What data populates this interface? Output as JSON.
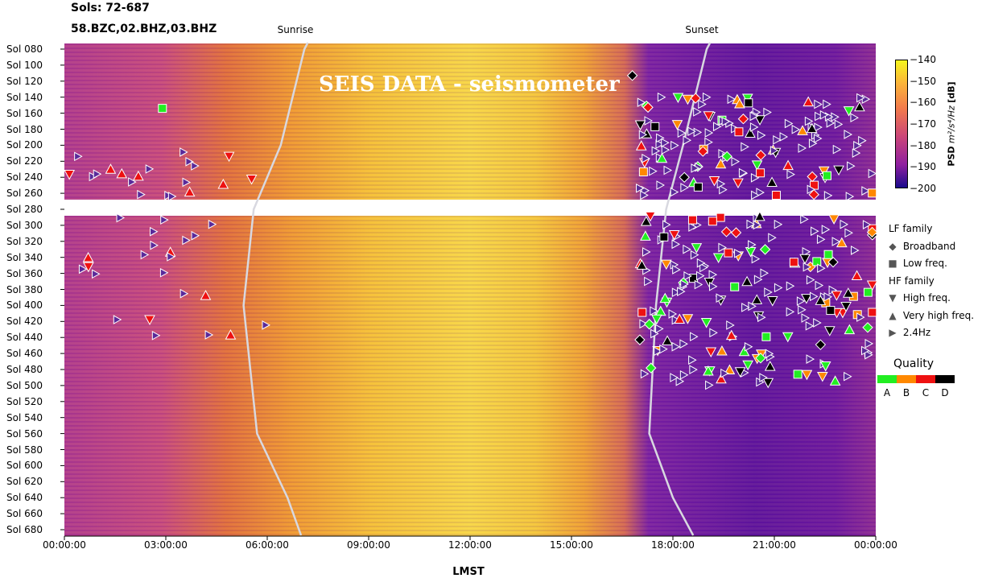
{
  "header": {
    "sols": "Sols: 72-687",
    "channels": "58.BZC,02.BHZ,03.BHZ"
  },
  "markers": {
    "sunrise": "Sunrise",
    "sunset": "Sunset"
  },
  "watermark": "SEIS DATA - seismometer",
  "colorbar": {
    "title": "PSD m²/s⁴/Hz [dB]",
    "ticks": [
      "−140",
      "−150",
      "−160",
      "−170",
      "−180",
      "−190",
      "−200"
    ],
    "range": [
      -200,
      -140
    ]
  },
  "legend": {
    "lf_title": "LF family",
    "broadband": "Broadband",
    "low_freq": "Low freq.",
    "hf_title": "HF family",
    "high_freq": "High freq.",
    "very_high_freq": "Very high freq.",
    "hz24": "2.4Hz"
  },
  "quality": {
    "title": "Quality",
    "labels": [
      "A",
      "B",
      "C",
      "D"
    ],
    "colors": [
      "#22ee22",
      "#ff8800",
      "#ee1111",
      "#000000"
    ]
  },
  "chart_data": {
    "type": "heatmap",
    "title": "",
    "xlabel": "LMST",
    "ylabel": "",
    "x_ticks": [
      "00:00:00",
      "03:00:00",
      "06:00:00",
      "09:00:00",
      "12:00:00",
      "15:00:00",
      "18:00:00",
      "21:00:00",
      "00:00:00"
    ],
    "y_ticks": [
      "Sol 080",
      "Sol 100",
      "Sol 120",
      "Sol 140",
      "Sol 160",
      "Sol 180",
      "Sol 200",
      "Sol 220",
      "Sol 240",
      "Sol 260",
      "Sol 280",
      "Sol 300",
      "Sol 320",
      "Sol 340",
      "Sol 360",
      "Sol 380",
      "Sol 400",
      "Sol 420",
      "Sol 440",
      "Sol 460",
      "Sol 480",
      "Sol 500",
      "Sol 520",
      "Sol 540",
      "Sol 560",
      "Sol 580",
      "Sol 600",
      "Sol 620",
      "Sol 640",
      "Sol 660",
      "Sol 680"
    ],
    "sol_range": [
      72,
      687
    ],
    "data_gap_sols": [
      267,
      288
    ],
    "value_range_db": [
      -200,
      -140
    ],
    "sunrise_hours": [
      [
        80,
        7.1
      ],
      [
        200,
        6.4
      ],
      [
        280,
        5.6
      ],
      [
        400,
        5.3
      ],
      [
        560,
        5.7
      ],
      [
        640,
        6.6
      ],
      [
        687,
        7.0
      ]
    ],
    "sunset_hours": [
      [
        80,
        19.0
      ],
      [
        200,
        18.3
      ],
      [
        280,
        17.8
      ],
      [
        400,
        17.5
      ],
      [
        560,
        17.3
      ],
      [
        640,
        18.0
      ],
      [
        687,
        18.6
      ]
    ]
  }
}
